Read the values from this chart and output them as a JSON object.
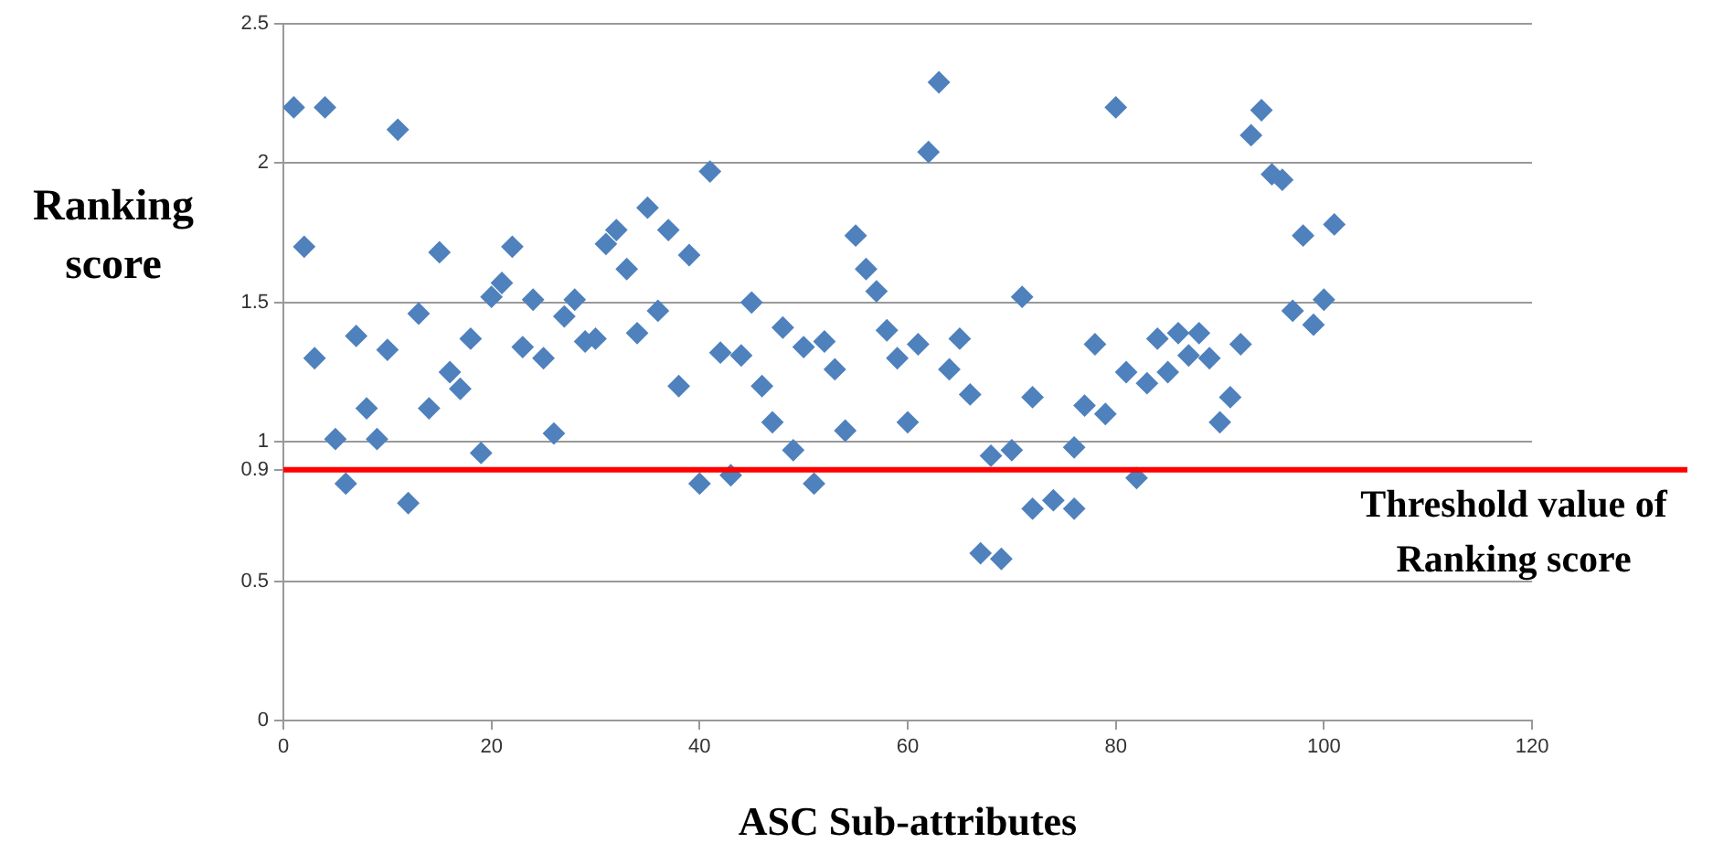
{
  "chart_data": {
    "type": "scatter",
    "xlabel": "ASC Sub-attributes",
    "ylabel": "Ranking score",
    "xlim": [
      0,
      120
    ],
    "xticks": [
      0,
      20,
      40,
      60,
      80,
      100,
      120
    ],
    "ylim": [
      0,
      2.5
    ],
    "yticks": [
      0,
      0.5,
      0.9,
      1,
      1.5,
      2,
      2.5
    ],
    "grid": "y",
    "legend": false,
    "marker": "diamond",
    "series": [
      {
        "color": "#4f81bd",
        "x": [
          1,
          2,
          3,
          4,
          5,
          6,
          7,
          8,
          9,
          10,
          11,
          12,
          13,
          14,
          15,
          16,
          17,
          18,
          19,
          20,
          21,
          22,
          23,
          24,
          25,
          26,
          27,
          28,
          29,
          30,
          31,
          32,
          33,
          34,
          35,
          36,
          37,
          38,
          39,
          40,
          41,
          42,
          43,
          44,
          45,
          46,
          47,
          48,
          49,
          50,
          51,
          52,
          53,
          54,
          55,
          56,
          57,
          58,
          59,
          60,
          61,
          62,
          63,
          64,
          65,
          66,
          67,
          68,
          69,
          70,
          71,
          72,
          72,
          74,
          76,
          76,
          77,
          78,
          79,
          80,
          81,
          82,
          83,
          84,
          85,
          86,
          87,
          88,
          89,
          90,
          91,
          92,
          93,
          94,
          95,
          96,
          97,
          98,
          99,
          100,
          101
        ],
        "values": [
          2.2,
          1.7,
          1.3,
          2.2,
          1.01,
          0.85,
          1.38,
          1.12,
          1.01,
          1.33,
          2.12,
          0.78,
          1.46,
          1.12,
          1.68,
          1.25,
          1.19,
          1.37,
          0.96,
          1.52,
          1.57,
          1.7,
          1.34,
          1.51,
          1.3,
          1.03,
          1.45,
          1.51,
          1.36,
          1.37,
          1.71,
          1.76,
          1.62,
          1.39,
          1.84,
          1.47,
          1.76,
          1.2,
          1.67,
          0.85,
          1.97,
          1.32,
          0.88,
          1.31,
          1.5,
          1.2,
          1.07,
          1.41,
          0.97,
          1.34,
          0.85,
          1.36,
          1.26,
          1.04,
          1.74,
          1.62,
          1.54,
          1.4,
          1.3,
          1.07,
          1.35,
          2.04,
          2.29,
          1.26,
          1.37,
          1.17,
          0.6,
          0.95,
          0.58,
          0.97,
          1.52,
          1.16,
          0.76,
          0.79,
          0.98,
          0.76,
          1.13,
          1.35,
          1.1,
          2.2,
          1.25,
          0.87,
          1.21,
          1.37,
          1.25,
          1.39,
          1.31,
          1.39,
          1.3,
          1.07,
          1.16,
          1.35,
          2.1,
          2.19,
          1.96,
          1.94,
          1.47,
          1.74,
          1.42,
          1.51,
          1.78
        ]
      }
    ],
    "ref_lines": [
      {
        "axis": "y",
        "value": 0.9,
        "label": "Threshold value of Ranking score",
        "color": "#ff0000"
      }
    ]
  }
}
